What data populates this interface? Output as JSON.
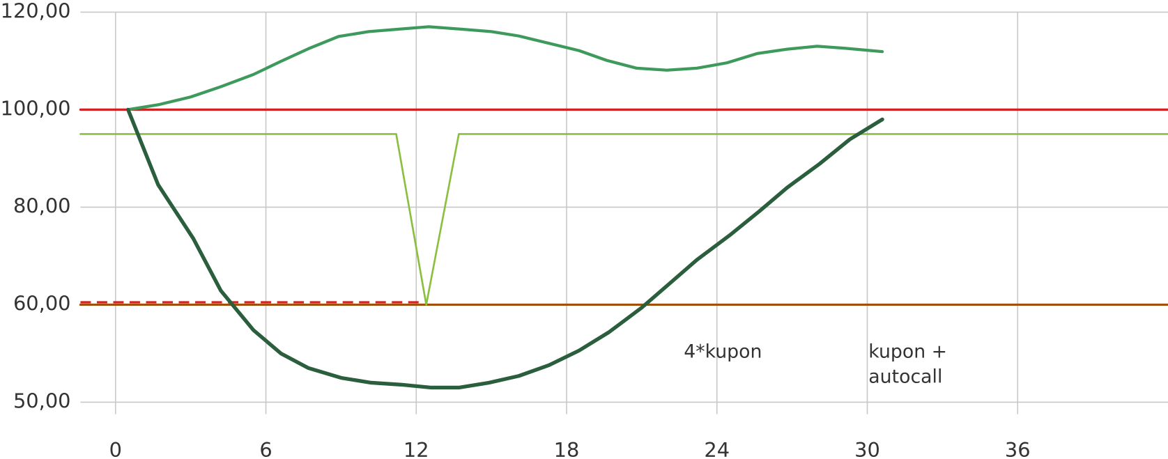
{
  "chart_data": {
    "type": "line",
    "xlim": [
      -1.4,
      42
    ],
    "xticks": [
      0,
      6,
      12,
      18,
      24,
      30,
      36
    ],
    "ylim": [
      50,
      120
    ],
    "yticks": [
      {
        "value": 50,
        "label": "50,00"
      },
      {
        "value": 60,
        "label": "60,00"
      },
      {
        "value": 80,
        "label": "80,00"
      },
      {
        "value": 100,
        "label": "100,00"
      },
      {
        "value": 120,
        "label": "120,00"
      }
    ],
    "grid": true,
    "series": [
      {
        "color": "#d42020",
        "width": 3,
        "x": [
          -1.4,
          42
        ],
        "values": [
          100,
          100
        ]
      },
      {
        "color": "#a0500a",
        "width": 3,
        "x": [
          -1.4,
          42
        ],
        "values": [
          60,
          60
        ]
      },
      {
        "color": "#d42020",
        "width": 3,
        "dash": true,
        "x": [
          -1.4,
          12.3
        ],
        "values": [
          60.5,
          60.5
        ]
      },
      {
        "color": "#8bbf3f",
        "width": 2.5,
        "x": [
          -1.4,
          11.2,
          12.4,
          13.7,
          42
        ],
        "values": [
          95,
          95,
          60,
          95,
          95
        ]
      },
      {
        "color": "#3e9a5c",
        "width": 4,
        "x": [
          0.5,
          1.7,
          3.0,
          4.2,
          5.5,
          6.6,
          7.7,
          8.9,
          10.1,
          11.3,
          12.5,
          13.8,
          15.0,
          16.1,
          17.3,
          18.5,
          19.6,
          20.8,
          22.0,
          23.2,
          24.4,
          25.6,
          26.8,
          28.0,
          29.1,
          30.6
        ],
        "values": [
          100,
          101,
          102.6,
          104.7,
          107.2,
          109.9,
          112.5,
          115,
          116,
          116.5,
          117,
          116.5,
          116,
          115.1,
          113.6,
          112.1,
          110.1,
          108.5,
          108.1,
          108.5,
          109.6,
          111.5,
          112.4,
          113,
          112.6,
          111.9
        ]
      },
      {
        "color": "#2a5e3c",
        "width": 5,
        "x": [
          0.5,
          1.7,
          3.1,
          4.2,
          5.5,
          6.6,
          7.7,
          9.0,
          10.2,
          11.4,
          12.6,
          13.7,
          14.9,
          16.1,
          17.3,
          18.5,
          19.7,
          21.0,
          22.1,
          23.2,
          24.5,
          25.7,
          26.8,
          28.1,
          29.3,
          30.6
        ],
        "values": [
          100,
          84.6,
          73.6,
          62.9,
          57.4,
          55,
          53.5,
          52.5,
          52,
          51.8,
          51.5,
          51.5,
          52,
          52.7,
          53.8,
          55.3,
          57.2,
          59.7,
          64.3,
          69.2,
          74.2,
          79.2,
          84,
          88.9,
          93.9,
          98
        ]
      }
    ],
    "annotations": [
      "4*kupon",
      "kupon + autocall"
    ]
  }
}
